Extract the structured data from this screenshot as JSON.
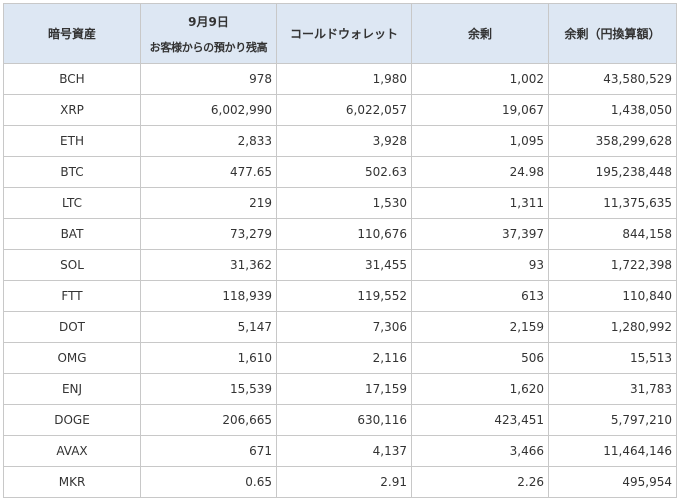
{
  "header": {
    "asset": "暗号資産",
    "date": "9月9日",
    "customer_balance": "お客様からの預かり残高",
    "cold_wallet": "コールドウォレット",
    "surplus": "余剰",
    "surplus_jpy": "余剰（円換算額）"
  },
  "rows": [
    {
      "asset": "BCH",
      "customer": "978",
      "cold": "1,980",
      "surplus": "1,002",
      "jpy": "43,580,529"
    },
    {
      "asset": "XRP",
      "customer": "6,002,990",
      "cold": "6,022,057",
      "surplus": "19,067",
      "jpy": "1,438,050"
    },
    {
      "asset": "ETH",
      "customer": "2,833",
      "cold": "3,928",
      "surplus": "1,095",
      "jpy": "358,299,628"
    },
    {
      "asset": "BTC",
      "customer": "477.65",
      "cold": "502.63",
      "surplus": "24.98",
      "jpy": "195,238,448"
    },
    {
      "asset": "LTC",
      "customer": "219",
      "cold": "1,530",
      "surplus": "1,311",
      "jpy": "11,375,635"
    },
    {
      "asset": "BAT",
      "customer": "73,279",
      "cold": "110,676",
      "surplus": "37,397",
      "jpy": "844,158"
    },
    {
      "asset": "SOL",
      "customer": "31,362",
      "cold": "31,455",
      "surplus": "93",
      "jpy": "1,722,398"
    },
    {
      "asset": "FTT",
      "customer": "118,939",
      "cold": "119,552",
      "surplus": "613",
      "jpy": "110,840"
    },
    {
      "asset": "DOT",
      "customer": "5,147",
      "cold": "7,306",
      "surplus": "2,159",
      "jpy": "1,280,992"
    },
    {
      "asset": "OMG",
      "customer": "1,610",
      "cold": "2,116",
      "surplus": "506",
      "jpy": "15,513"
    },
    {
      "asset": "ENJ",
      "customer": "15,539",
      "cold": "17,159",
      "surplus": "1,620",
      "jpy": "31,783"
    },
    {
      "asset": "DOGE",
      "customer": "206,665",
      "cold": "630,116",
      "surplus": "423,451",
      "jpy": "5,797,210"
    },
    {
      "asset": "AVAX",
      "customer": "671",
      "cold": "4,137",
      "surplus": "3,466",
      "jpy": "11,464,146"
    },
    {
      "asset": "MKR",
      "customer": "0.65",
      "cold": "2.91",
      "surplus": "2.26",
      "jpy": "495,954"
    }
  ]
}
